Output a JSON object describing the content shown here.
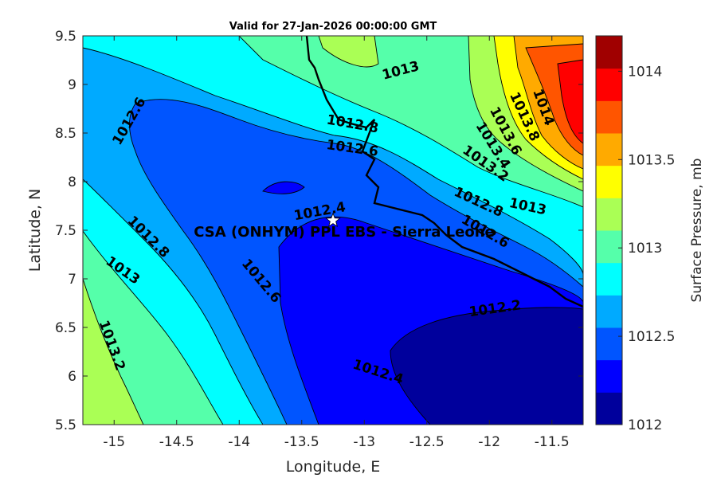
{
  "title": "Valid for 27-Jan-2026 00:00:00 GMT",
  "xlabel": "Longitude, E",
  "ylabel": "Latitude, N",
  "x_ticks": [
    "-15",
    "-14.5",
    "-14",
    "-13.5",
    "-13",
    "-12.5",
    "-12",
    "-11.5"
  ],
  "y_ticks": [
    "9.5",
    "9",
    "8.5",
    "8",
    "7.5",
    "7",
    "6.5",
    "6",
    "5.5"
  ],
  "colorbar": {
    "label": "Surface Pressure, mb",
    "ticks": [
      "1014",
      "1013.5",
      "1013",
      "1012.5",
      "1012"
    ],
    "colors": [
      "#00009c",
      "#0000ff",
      "#0055ff",
      "#00aaff",
      "#00ffff",
      "#55ffaa",
      "#aaff55",
      "#ffff00",
      "#ffaa00",
      "#ff5500",
      "#ff0000",
      "#a00000"
    ]
  },
  "site": {
    "name": "CSA (ONHYM) PPL EBS  - Sierra Leone",
    "marker": "star-icon"
  },
  "chart_data": {
    "type": "contour-map",
    "field": "Surface Pressure, mb",
    "xlim": [
      -15.25,
      -11.25
    ],
    "ylim": [
      5.5,
      9.5
    ],
    "clim": [
      1012,
      1014.2
    ],
    "levels_step": 0.2,
    "contour_labels": [
      {
        "text": "1012.6",
        "lon": -14.85,
        "lat": 8.6
      },
      {
        "text": "1013",
        "lon": -12.7,
        "lat": 9.1
      },
      {
        "text": "1012.8",
        "lon": -13.1,
        "lat": 8.55
      },
      {
        "text": "1012.6",
        "lon": -13.1,
        "lat": 8.3
      },
      {
        "text": "1014",
        "lon": -11.6,
        "lat": 8.75
      },
      {
        "text": "1013.8",
        "lon": -11.75,
        "lat": 8.65
      },
      {
        "text": "1013.6",
        "lon": -11.9,
        "lat": 8.5
      },
      {
        "text": "1013.4",
        "lon": -12.0,
        "lat": 8.35
      },
      {
        "text": "1013.2",
        "lon": -12.05,
        "lat": 8.15
      },
      {
        "text": "1013",
        "lon": -11.7,
        "lat": 7.7
      },
      {
        "text": "1012.8",
        "lon": -12.1,
        "lat": 7.75
      },
      {
        "text": "1012.6",
        "lon": -12.05,
        "lat": 7.45
      },
      {
        "text": "1012.4",
        "lon": -13.35,
        "lat": 7.65
      },
      {
        "text": "1012.2",
        "lon": -11.95,
        "lat": 6.65
      },
      {
        "text": "1012.4",
        "lon": -12.9,
        "lat": 6.0
      },
      {
        "text": "1012.6",
        "lon": -13.85,
        "lat": 6.95
      },
      {
        "text": "1012.8",
        "lon": -14.75,
        "lat": 7.4
      },
      {
        "text": "1013",
        "lon": -14.95,
        "lat": 7.05
      },
      {
        "text": "1013.2",
        "lon": -15.05,
        "lat": 6.3
      }
    ],
    "site_location": {
      "lon": -13.25,
      "lat": 7.6
    }
  }
}
